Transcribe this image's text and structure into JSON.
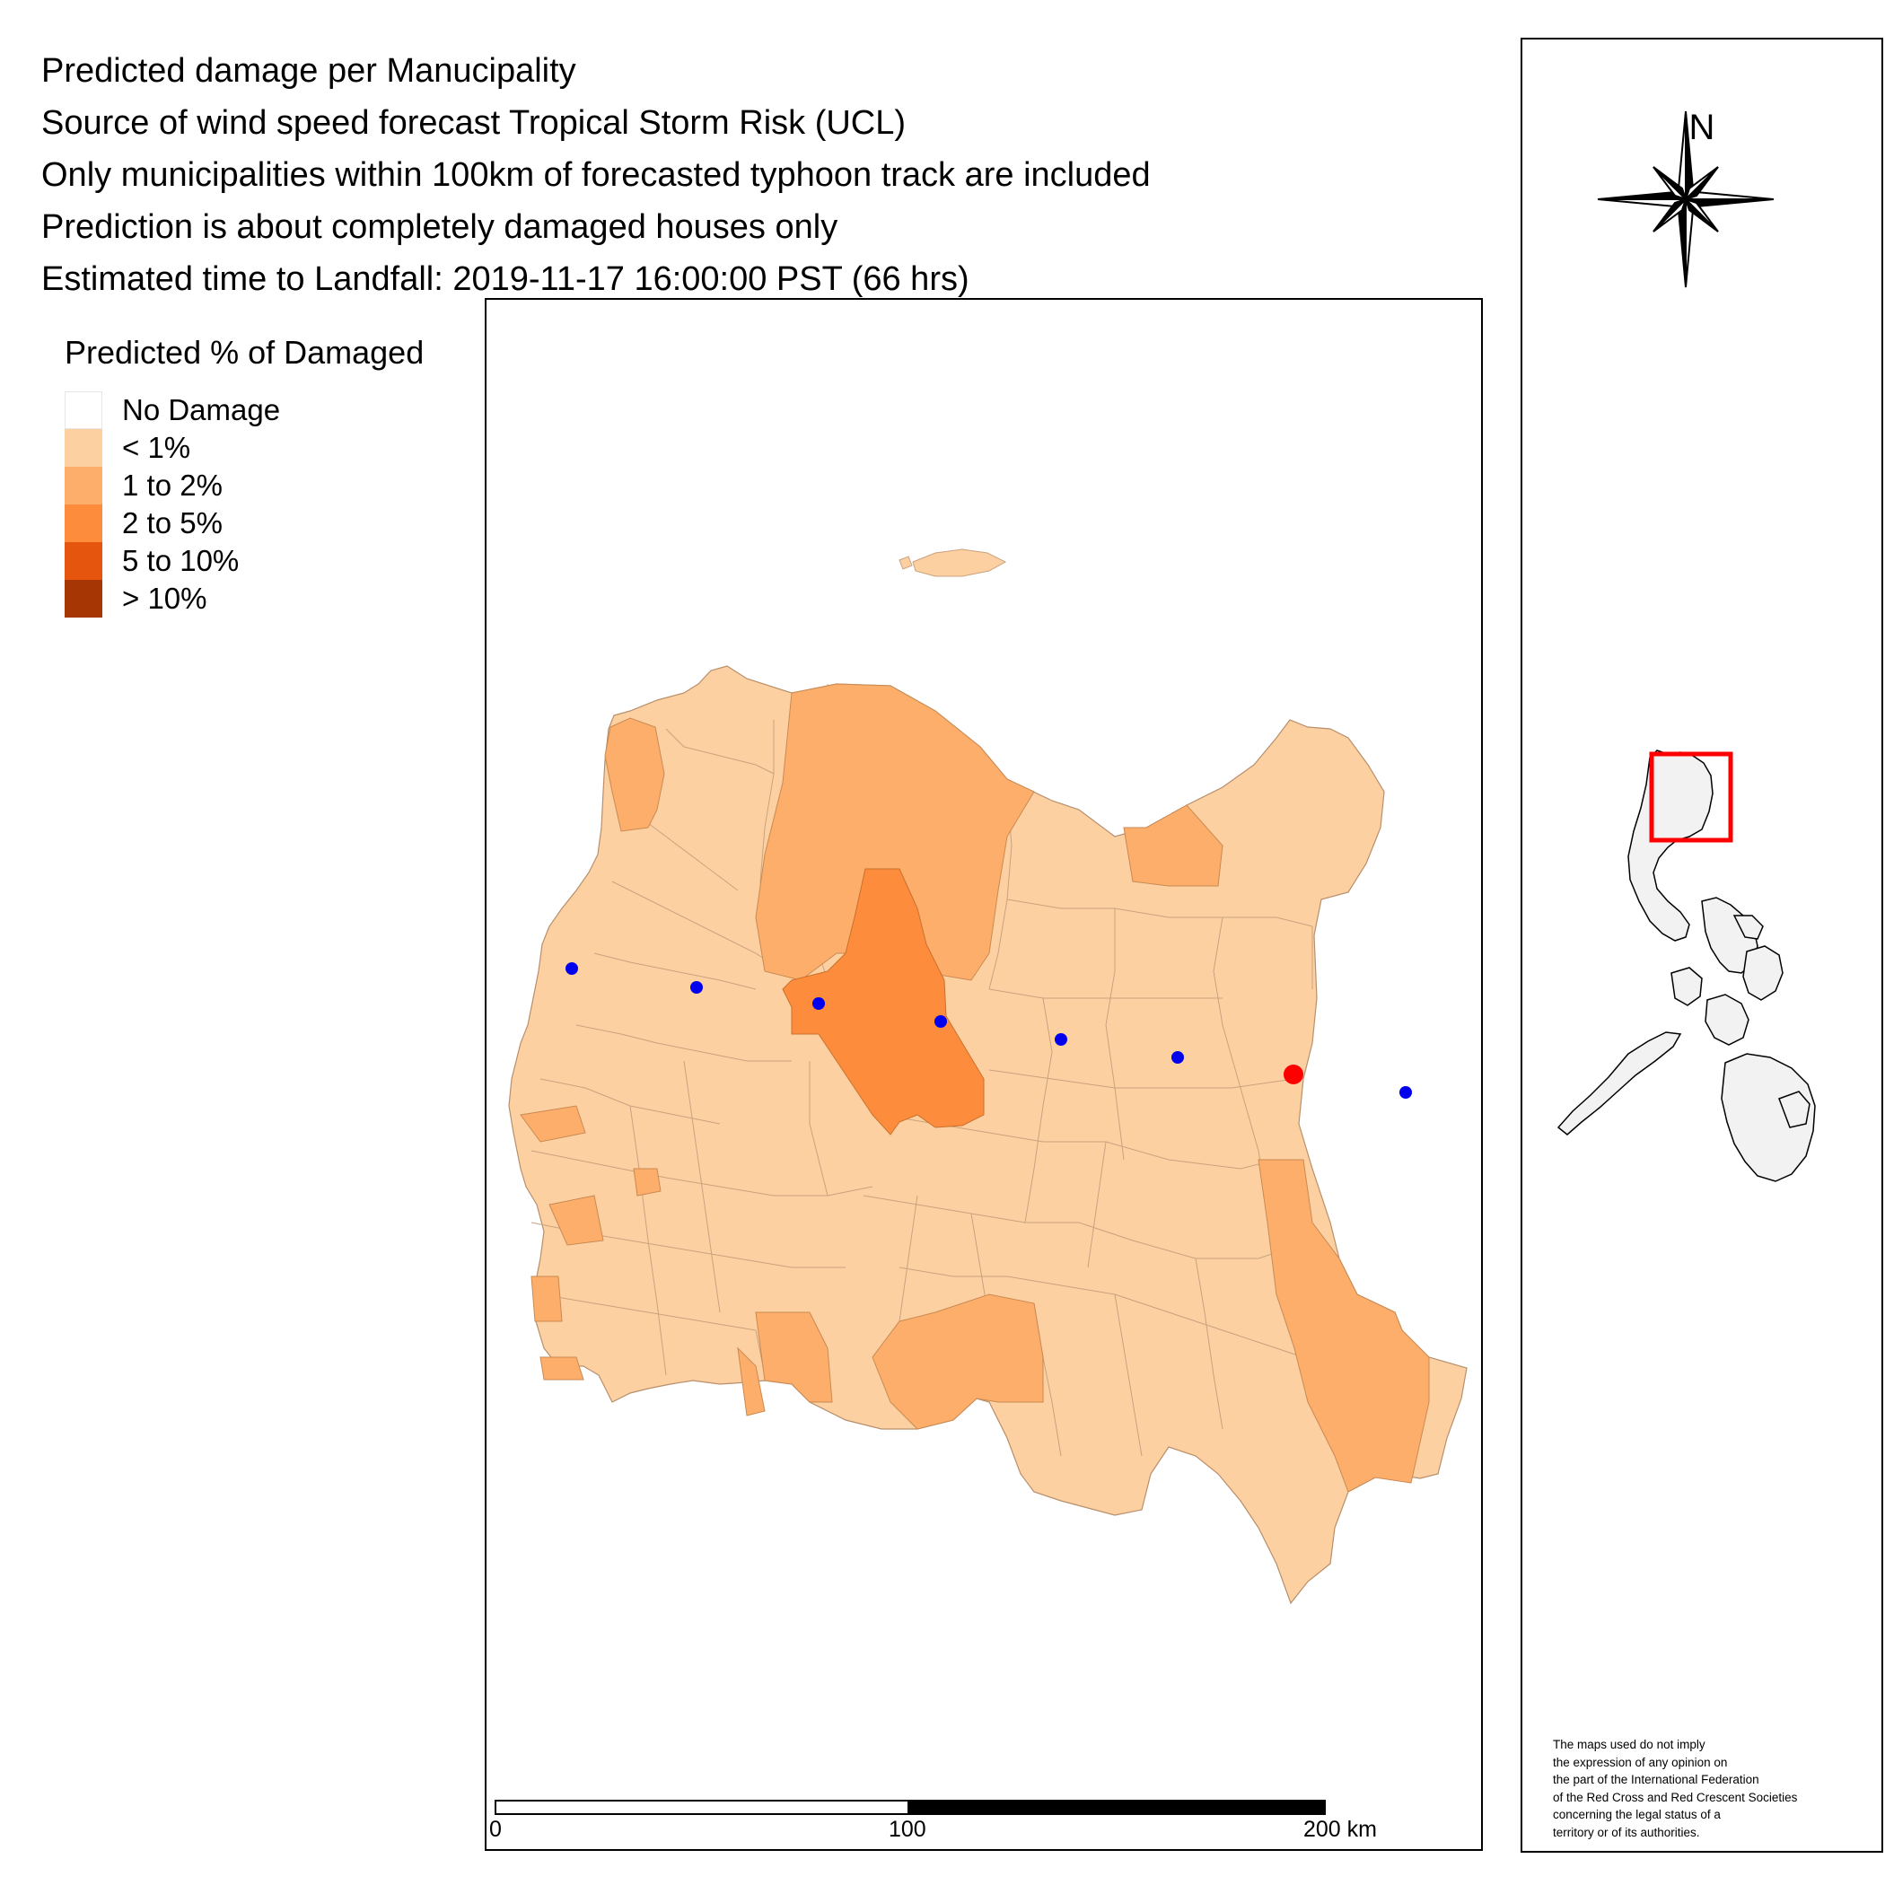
{
  "title_lines": [
    "Predicted damage per Manucipality",
    "Source of wind speed forecast Tropical Storm Risk (UCL)",
    "Only municipalities within 100km of forecasted typhoon track are included",
    "Prediction is about completely damaged houses only",
    "Estimated time to Landfall: 2019-11-17 16:00:00 PST (66 hrs)"
  ],
  "legend": {
    "title": "Predicted % of Damaged",
    "items": [
      {
        "label": "No Damage",
        "color": "#ffffff"
      },
      {
        "label": "< 1%",
        "color": "#fdd0a2"
      },
      {
        "label": "1 to 2%",
        "color": "#fdae6b"
      },
      {
        "label": "2 to 5%",
        "color": "#fd8d3c"
      },
      {
        "label": "5 to 10%",
        "color": "#e6550d"
      },
      {
        "label": "> 10%",
        "color": "#a63603"
      }
    ]
  },
  "scale_bar": {
    "labels": [
      "0",
      "100",
      "200 km"
    ]
  },
  "north_arrow_label": "N",
  "disclaimer_lines": [
    "The maps used do not imply",
    "the expression of any opinion on",
    "the part of the International Federation",
    " of the Red Cross and Red Crescent Societies",
    " concerning the legal status of a",
    " territory or of its authorities."
  ],
  "track_point_color": "#0000ee",
  "landfall_point_color": "#ff0000",
  "inset_highlight_color": "#ff0000"
}
